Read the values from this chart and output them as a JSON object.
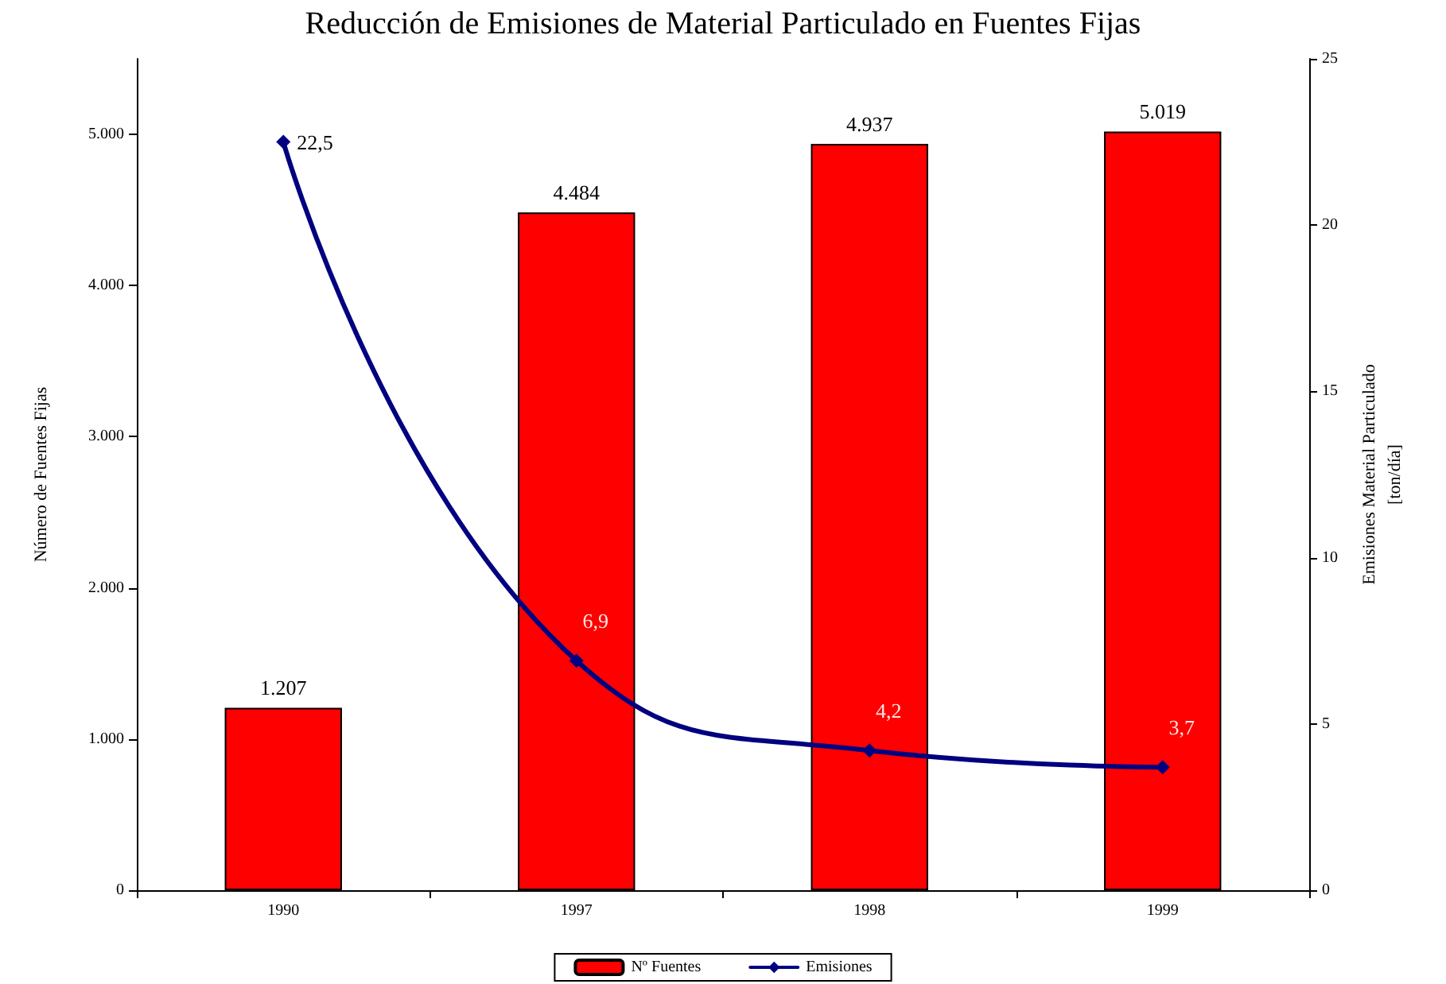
{
  "chart_data": {
    "type": "bar",
    "title": "Reducción de Emisiones de Material Particulado en Fuentes Fijas",
    "ylabel": "Número de Fuentes Fijas",
    "y2label": "Emisiones Material Particulado\n[ton/día]",
    "categories": [
      "1990",
      "1997",
      "1998",
      "1999"
    ],
    "series": [
      {
        "name": "Nº Fuentes",
        "color": "#ff0000",
        "values": [
          1207,
          4484,
          4937,
          5019
        ],
        "value_labels": [
          "1.207",
          "4.484",
          "4.937",
          "5.019"
        ]
      },
      {
        "name": "Emisiones",
        "type": "line",
        "axis": "y2",
        "color": "#000080",
        "marker": "diamond",
        "values": [
          22.5,
          6.9,
          4.2,
          3.7
        ],
        "value_labels": [
          "22,5",
          "6,9",
          "4,2",
          "3,7"
        ]
      }
    ],
    "ylim": [
      0,
      5500
    ],
    "yticks": [
      0,
      {
        "value": 1000,
        "label": "1.000"
      },
      {
        "value": 2000,
        "label": "2.000"
      },
      {
        "value": 3000,
        "label": "3.000"
      },
      {
        "value": 4000,
        "label": "4.000"
      },
      {
        "value": 5000,
        "label": "5.000"
      }
    ],
    "y2lim": [
      0,
      25
    ],
    "y2ticks": [
      0,
      5,
      10,
      15,
      20,
      25
    ],
    "grid": false,
    "legend": "bottom"
  }
}
